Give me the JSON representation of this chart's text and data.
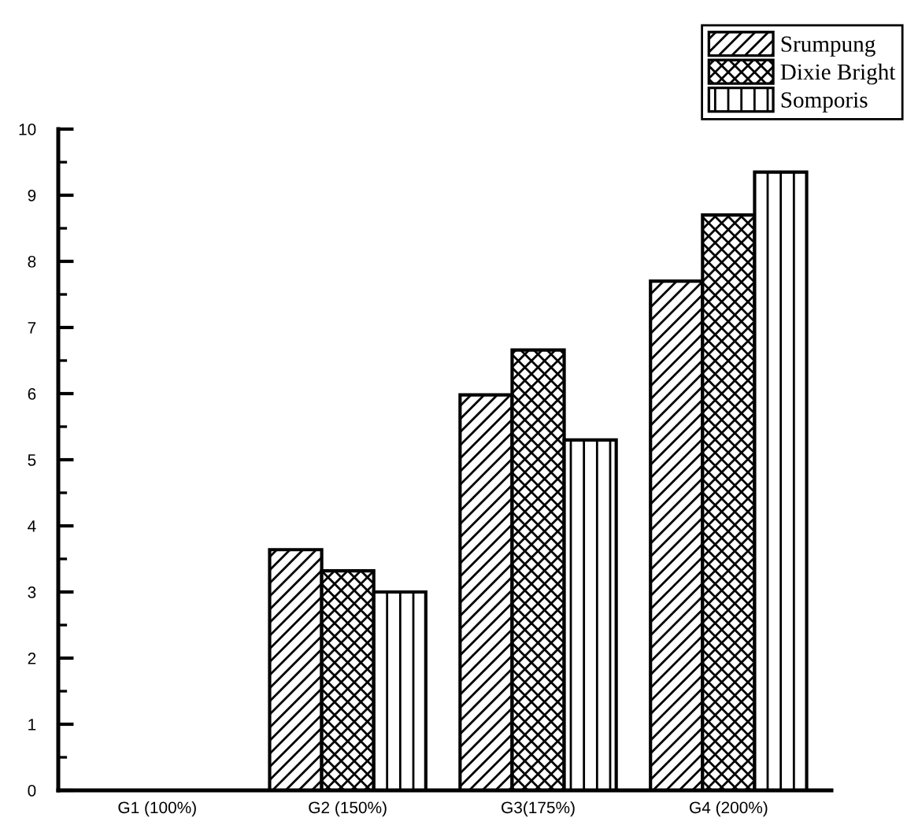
{
  "chart_data": {
    "type": "bar",
    "categories": [
      "G1 (100%)",
      "G2 (150%)",
      "G3(175%)",
      "G4 (200%)"
    ],
    "series": [
      {
        "name": "Srumpung",
        "color": "#000000",
        "values": [
          0,
          3.64,
          5.98,
          7.7
        ]
      },
      {
        "name": "Dixie Bright",
        "color": "#000000",
        "values": [
          0,
          3.32,
          6.66,
          8.7
        ]
      },
      {
        "name": "Somporis",
        "color": "#000000",
        "values": [
          0,
          3.0,
          5.3,
          9.35
        ]
      }
    ],
    "ylim": [
      0,
      10
    ],
    "yticks": [
      0,
      {
        "value": 0.5,
        "label": null
      },
      1,
      {
        "value": 1.5,
        "label": null
      },
      2,
      {
        "value": 2.5,
        "label": null
      },
      3,
      {
        "value": 3.5,
        "label": null
      },
      4,
      {
        "value": 4.5,
        "label": null
      },
      5,
      {
        "value": 5.5,
        "label": null
      },
      6,
      {
        "value": 6.5,
        "label": null
      },
      7,
      {
        "value": 7.5,
        "label": null
      },
      8,
      {
        "value": 8.5,
        "label": null
      },
      9,
      {
        "value": 9.5,
        "label": null
      },
      10
    ],
    "grid": false,
    "legend": "top right"
  }
}
